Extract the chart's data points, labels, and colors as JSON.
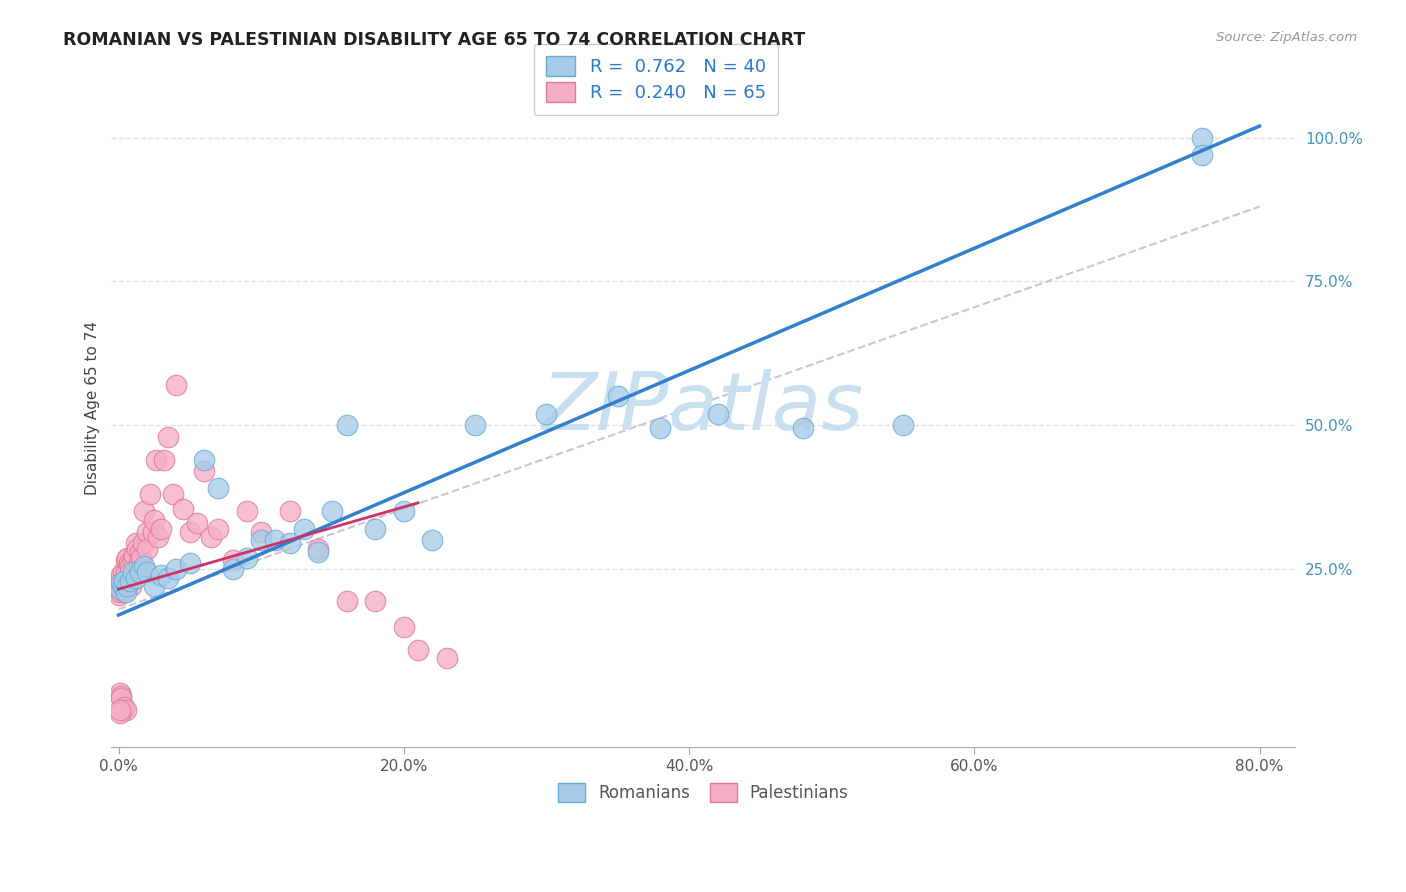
{
  "title": "ROMANIAN VS PALESTINIAN DISABILITY AGE 65 TO 74 CORRELATION CHART",
  "source": "Source: ZipAtlas.com",
  "ylabel_label": "Disability Age 65 to 74",
  "legend_label1": "Romanians",
  "legend_label2": "Palestinians",
  "blue_color": "#a8cce8",
  "blue_edge": "#6aaad4",
  "pink_color": "#f5afc5",
  "pink_edge": "#e07898",
  "blue_line_color": "#3380cc",
  "pink_line_color": "#cc3366",
  "ref_line_color": "#ccbbcc",
  "watermark_color": "#c8dff0",
  "xmin": -0.005,
  "xmax": 0.825,
  "ymin": -0.06,
  "ymax": 1.12,
  "rom_line_x0": 0.0,
  "rom_line_y0": 0.17,
  "rom_line_x1": 0.8,
  "rom_line_y1": 1.02,
  "pal_line_x0": 0.0,
  "pal_line_y0": 0.215,
  "pal_line_x1": 0.21,
  "pal_line_y1": 0.365,
  "ref_line_x0": 0.0,
  "ref_line_y0": 0.18,
  "ref_line_x1": 0.8,
  "ref_line_y1": 0.88,
  "romanian_x": [
    0.001,
    0.002,
    0.003,
    0.004,
    0.005,
    0.006,
    0.008,
    0.01,
    0.012,
    0.015,
    0.018,
    0.02,
    0.025,
    0.03,
    0.035,
    0.04,
    0.05,
    0.06,
    0.07,
    0.08,
    0.09,
    0.1,
    0.11,
    0.12,
    0.13,
    0.14,
    0.15,
    0.16,
    0.18,
    0.2,
    0.22,
    0.25,
    0.3,
    0.35,
    0.38,
    0.42,
    0.48,
    0.55,
    0.76,
    0.76
  ],
  "romanian_y": [
    0.215,
    0.225,
    0.22,
    0.23,
    0.21,
    0.22,
    0.23,
    0.245,
    0.235,
    0.245,
    0.255,
    0.245,
    0.22,
    0.24,
    0.235,
    0.25,
    0.26,
    0.44,
    0.39,
    0.25,
    0.27,
    0.3,
    0.3,
    0.295,
    0.32,
    0.28,
    0.35,
    0.5,
    0.32,
    0.35,
    0.3,
    0.5,
    0.52,
    0.55,
    0.495,
    0.52,
    0.495,
    0.5,
    1.0,
    0.97
  ],
  "palestinian_x": [
    0.0005,
    0.001,
    0.001,
    0.001,
    0.002,
    0.002,
    0.003,
    0.003,
    0.004,
    0.004,
    0.005,
    0.005,
    0.006,
    0.007,
    0.007,
    0.008,
    0.008,
    0.009,
    0.01,
    0.01,
    0.011,
    0.012,
    0.013,
    0.014,
    0.015,
    0.016,
    0.017,
    0.018,
    0.02,
    0.02,
    0.022,
    0.024,
    0.025,
    0.026,
    0.028,
    0.03,
    0.032,
    0.035,
    0.038,
    0.04,
    0.045,
    0.05,
    0.055,
    0.06,
    0.065,
    0.07,
    0.08,
    0.09,
    0.1,
    0.12,
    0.14,
    0.16,
    0.18,
    0.2,
    0.21,
    0.23,
    0.001,
    0.002,
    0.002,
    0.003,
    0.003,
    0.004,
    0.005,
    0.001,
    0.001
  ],
  "palestinian_y": [
    0.205,
    0.21,
    0.22,
    0.23,
    0.215,
    0.24,
    0.22,
    0.245,
    0.21,
    0.23,
    0.245,
    0.265,
    0.27,
    0.26,
    0.23,
    0.255,
    0.245,
    0.22,
    0.235,
    0.265,
    0.275,
    0.295,
    0.285,
    0.26,
    0.28,
    0.27,
    0.295,
    0.35,
    0.315,
    0.285,
    0.38,
    0.315,
    0.335,
    0.44,
    0.305,
    0.32,
    0.44,
    0.48,
    0.38,
    0.57,
    0.355,
    0.315,
    0.33,
    0.42,
    0.305,
    0.32,
    0.265,
    0.35,
    0.315,
    0.35,
    0.285,
    0.195,
    0.195,
    0.15,
    0.11,
    0.095,
    0.035,
    0.03,
    0.025,
    0.005,
    0.005,
    0.01,
    0.005,
    0.0,
    0.005
  ]
}
